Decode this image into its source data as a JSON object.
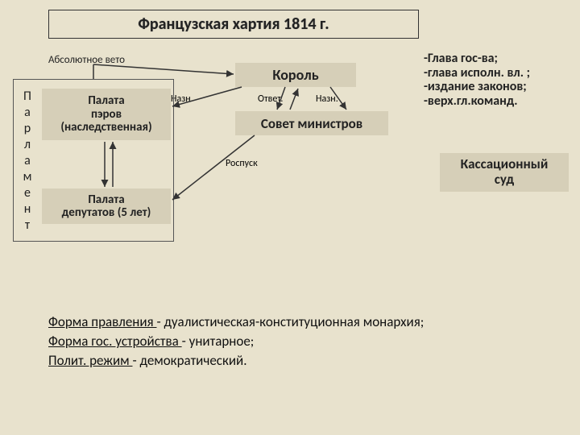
{
  "title": "Французская хартия 1814 г.",
  "veto": "Абсолютное вето",
  "king": "Король",
  "labels": {
    "nazn": "Назн.",
    "otvet": "Ответ.",
    "rospusk": "Роспуск"
  },
  "council": "Совет министров",
  "parliament_vertical": [
    "П",
    "а",
    "р",
    "л",
    "а",
    "м",
    "е",
    "н",
    "т"
  ],
  "chamber_peers": "Палата\nпэров\n(наследственная)",
  "chamber_deputies": "Палата\nдепутатов (5 лет)",
  "king_powers": "-Глава гос-ва;\n-глава исполн. вл. ;\n-издание законов;\n-верх.гл.команд.",
  "court": "Кассационный\nсуд",
  "footer": {
    "l1a": "Форма правления ",
    "l1b": "- дуалистическая-конституционная монархия;",
    "l2a": "Форма гос. устройства ",
    "l2b": "- унитарное;",
    "l3a": "Полит. режим ",
    "l3b": "- демократический."
  },
  "colors": {
    "bg": "#e8e2cd",
    "box": "#d6cfb8",
    "line": "#333333"
  }
}
